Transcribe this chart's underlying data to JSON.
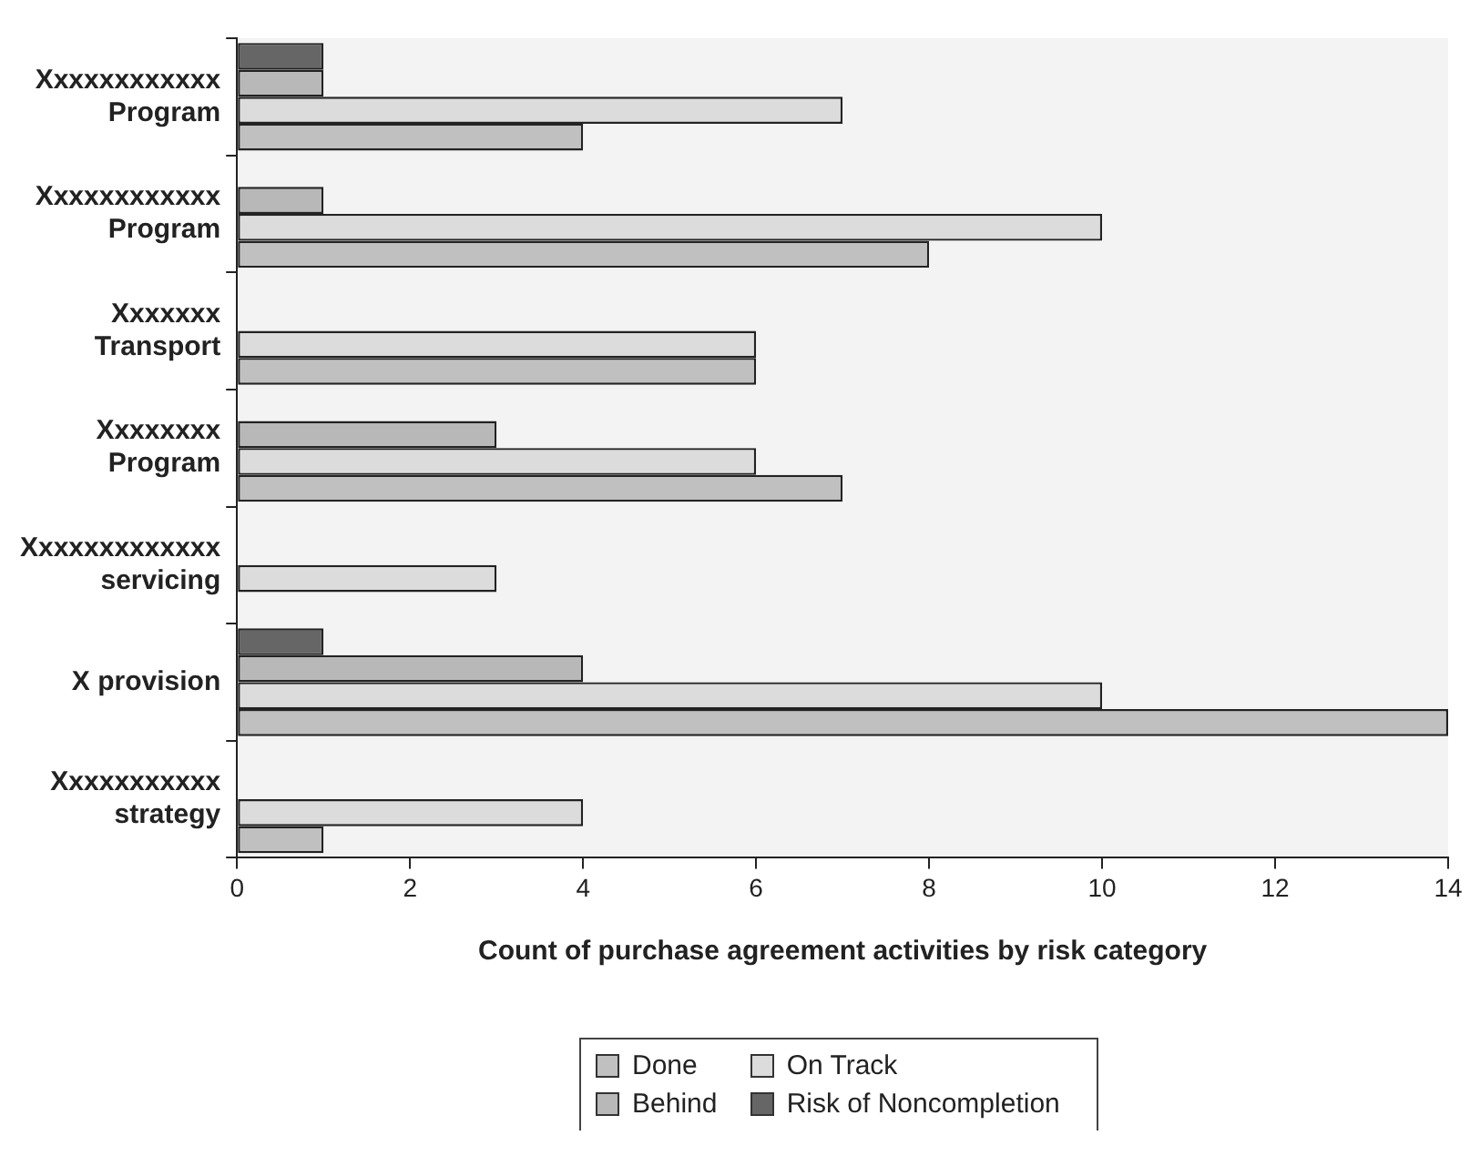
{
  "chart_data": {
    "type": "bar",
    "orientation": "horizontal",
    "xlabel": "Count of purchase agreement activities by risk category",
    "categories": [
      "Xxxxxxxxxxxx\nProgram",
      "Xxxxxxxxxxxx\nProgram",
      "Xxxxxxx\nTransport",
      "Xxxxxxxx\nProgram",
      "Xxxxxxxxxxxxx\nservicing",
      "X provision",
      "Xxxxxxxxxxx\nstrategy"
    ],
    "series": [
      {
        "name": "Risk of Noncompletion",
        "color": "#666666",
        "values": [
          1,
          null,
          null,
          null,
          null,
          1,
          null
        ]
      },
      {
        "name": "Behind",
        "color": "#b8b8b8",
        "values": [
          1,
          1,
          null,
          3,
          null,
          4,
          null
        ]
      },
      {
        "name": "On Track",
        "color": "#dcdcdc",
        "values": [
          7,
          10,
          6,
          6,
          3,
          10,
          4
        ]
      },
      {
        "name": "Done",
        "color": "#c0c0c0",
        "values": [
          4,
          8,
          6,
          7,
          null,
          14,
          1
        ]
      }
    ],
    "xlim": [
      0,
      14
    ],
    "xticks": [
      0,
      2,
      4,
      6,
      8,
      10,
      12,
      14
    ],
    "grid": false,
    "legend": "bottom"
  }
}
